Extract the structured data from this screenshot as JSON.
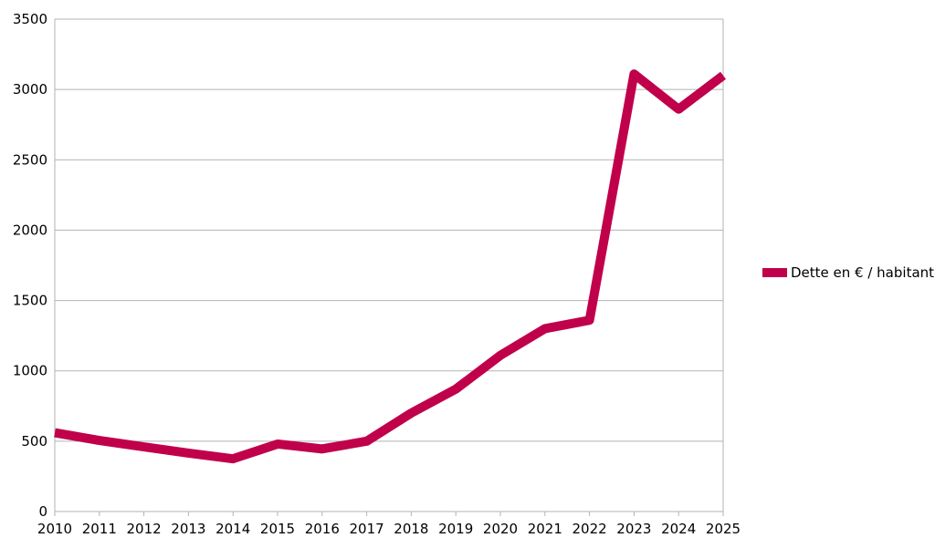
{
  "chart_data": {
    "type": "line",
    "categories": [
      "2010",
      "2011",
      "2012",
      "2013",
      "2014",
      "2015",
      "2016",
      "2017",
      "2018",
      "2019",
      "2020",
      "2021",
      "2022",
      "2023",
      "2024",
      "2025"
    ],
    "series": [
      {
        "name": "Dette en € / habitant",
        "values": [
          560,
          505,
          460,
          415,
          375,
          480,
          445,
          500,
          700,
          870,
          1110,
          1300,
          1360,
          3110,
          2860,
          3100
        ],
        "color": "#c0004a"
      }
    ],
    "y_ticks": [
      "0",
      "500",
      "1000",
      "1500",
      "2000",
      "2500",
      "3000",
      "3500"
    ],
    "ylim": [
      0,
      3500
    ],
    "grid": "horizontal",
    "legend_position": "right"
  }
}
